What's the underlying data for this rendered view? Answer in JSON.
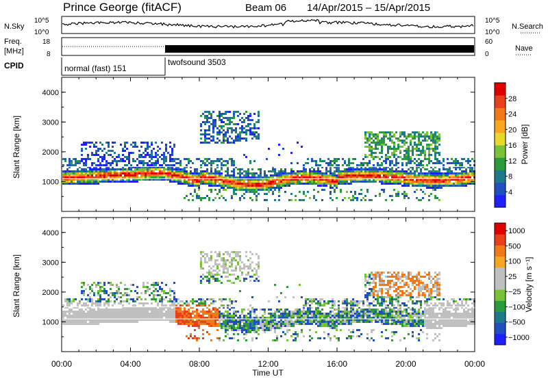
{
  "header": {
    "station": "Prince George (fitACF)",
    "beam": "Beam 06",
    "date_range": "14/Apr/2015 – 15/Apr/2015"
  },
  "panels": {
    "nsky": {
      "left_label": "N.Sky",
      "right_label": "N.Search",
      "tick_top": "10^5",
      "tick_bottom": "10^0",
      "tick_top_right": "10^5",
      "tick_bottom_right": "10^0"
    },
    "freq": {
      "left_label_1": "Freq.",
      "left_label_2": "[MHz]",
      "right_label": "Nave",
      "tick_top": "18",
      "tick_bottom": "8",
      "tick_top_right": "60",
      "tick_bottom_right": "0"
    },
    "cpid": {
      "label": "CPID",
      "modes": [
        {
          "name": "normal (fast) 151",
          "start_hour": 0,
          "end_hour": 6
        },
        {
          "name": "twofsound 3503",
          "start_hour": 6,
          "end_hour": 24
        }
      ]
    }
  },
  "chart_data": [
    {
      "type": "heatmap",
      "title": "Power",
      "ylabel": "Slant Range [km]",
      "xlabel": "Time UT",
      "ylim": [
        0,
        4500
      ],
      "yticks": [
        1000,
        2000,
        3000,
        4000
      ],
      "xticks": [
        "00:00",
        "04:00",
        "08:00",
        "12:00",
        "16:00",
        "20:00",
        "00:00"
      ],
      "colorbar": {
        "label": "Power [dB]",
        "ticks": [
          "4",
          "8",
          "12",
          "16",
          "20",
          "24",
          "28"
        ],
        "colors": [
          "#1f1fff",
          "#2050c0",
          "#1e7a8a",
          "#2a9a3a",
          "#7ac13a",
          "#e8d82a",
          "#f6a623",
          "#f07a1a",
          "#e8401a",
          "#e00000"
        ]
      }
    },
    {
      "type": "heatmap",
      "title": "Velocity",
      "ylabel": "Slant Range [km]",
      "xlabel": "Time UT",
      "ylim": [
        0,
        4500
      ],
      "yticks": [
        1000,
        2000,
        3000,
        4000
      ],
      "xticks": [
        "00:00",
        "04:00",
        "08:00",
        "12:00",
        "16:00",
        "20:00",
        "00:00"
      ],
      "colorbar": {
        "label": "Velocity [m s⁻¹]",
        "ticks": [
          "1000",
          "500",
          "100",
          "25",
          "−25",
          "−100",
          "−500",
          "−1000"
        ],
        "colors": [
          "#1f1fff",
          "#2050c0",
          "#1e7a8a",
          "#2a9a3a",
          "#7ac13a",
          "#c0c0c0",
          "#c0c0c0",
          "#f6a623",
          "#f07a1a",
          "#e8401a",
          "#e00000"
        ]
      }
    }
  ]
}
